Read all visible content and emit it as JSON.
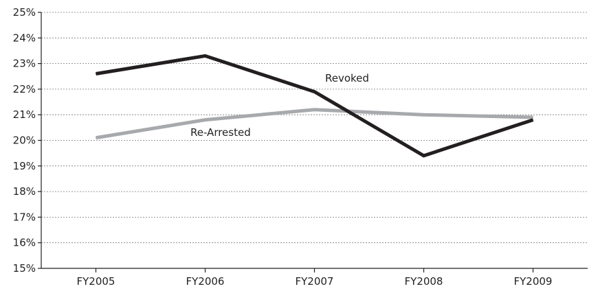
{
  "chart_data": {
    "type": "line",
    "categories": [
      "FY2005",
      "FY2006",
      "FY2007",
      "FY2008",
      "FY2009"
    ],
    "series": [
      {
        "name": "Revoked",
        "values": [
          22.6,
          23.3,
          21.9,
          19.4,
          20.8
        ],
        "color": "#231f20"
      },
      {
        "name": "Re-Arrested",
        "values": [
          20.1,
          20.8,
          21.2,
          21.0,
          20.9
        ],
        "color": "#a7a9ac"
      }
    ],
    "y_ticks": [
      "15%",
      "16%",
      "17%",
      "18%",
      "19%",
      "20%",
      "21%",
      "22%",
      "23%",
      "24%",
      "25%"
    ],
    "ylim": [
      15,
      25
    ],
    "grid": true,
    "title": "",
    "xlabel": "",
    "ylabel": ""
  }
}
